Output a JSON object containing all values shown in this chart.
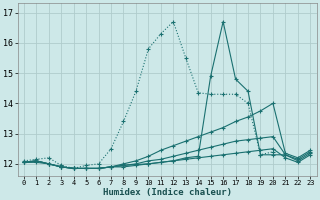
{
  "xlabel": "Humidex (Indice chaleur)",
  "bg_color": "#cde8e8",
  "grid_color": "#b0cccc",
  "line_color": "#1a7070",
  "xlim": [
    -0.5,
    23.5
  ],
  "ylim": [
    11.6,
    17.3
  ],
  "xticks": [
    0,
    1,
    2,
    3,
    4,
    5,
    6,
    7,
    8,
    9,
    10,
    11,
    12,
    13,
    14,
    15,
    16,
    17,
    18,
    19,
    20,
    21,
    22,
    23
  ],
  "yticks": [
    12,
    13,
    14,
    15,
    16,
    17
  ],
  "lines": [
    {
      "x": [
        0,
        1,
        2,
        3,
        4,
        5,
        6,
        7,
        8,
        9,
        10,
        11,
        12,
        13,
        14,
        15,
        16,
        17,
        18,
        19,
        20
      ],
      "y": [
        12.1,
        12.15,
        12.2,
        11.95,
        11.85,
        11.95,
        12.0,
        12.5,
        13.4,
        14.4,
        15.8,
        16.3,
        16.7,
        15.5,
        14.35,
        14.3,
        14.3,
        14.3,
        14.0,
        12.3,
        12.4
      ],
      "linestyle": "dotted"
    },
    {
      "x": [
        0,
        1,
        2,
        3,
        4,
        5,
        6,
        7,
        8,
        9,
        10,
        11,
        12,
        13,
        14,
        15,
        16,
        17,
        18,
        19,
        20,
        21,
        22,
        23
      ],
      "y": [
        12.05,
        12.05,
        12.0,
        11.9,
        11.85,
        11.85,
        11.85,
        11.9,
        11.9,
        11.95,
        12.0,
        12.05,
        12.1,
        12.2,
        12.25,
        14.9,
        16.7,
        14.8,
        14.4,
        12.3,
        12.3,
        12.3,
        12.15,
        12.4
      ],
      "linestyle": "solid"
    },
    {
      "x": [
        0,
        1,
        2,
        3,
        4,
        5,
        6,
        7,
        8,
        9,
        10,
        11,
        12,
        13,
        14,
        15,
        16,
        17,
        18,
        19,
        20,
        21,
        22,
        23
      ],
      "y": [
        12.05,
        12.1,
        12.0,
        11.9,
        11.85,
        11.85,
        11.85,
        11.9,
        12.0,
        12.1,
        12.25,
        12.45,
        12.6,
        12.75,
        12.9,
        13.05,
        13.2,
        13.4,
        13.55,
        13.75,
        14.0,
        12.35,
        12.2,
        12.45
      ],
      "linestyle": "solid"
    },
    {
      "x": [
        0,
        1,
        2,
        3,
        4,
        5,
        6,
        7,
        8,
        9,
        10,
        11,
        12,
        13,
        14,
        15,
        16,
        17,
        18,
        19,
        20,
        21,
        22,
        23
      ],
      "y": [
        12.05,
        12.1,
        12.0,
        11.9,
        11.85,
        11.85,
        11.85,
        11.9,
        11.95,
        12.0,
        12.1,
        12.15,
        12.25,
        12.35,
        12.45,
        12.55,
        12.65,
        12.75,
        12.8,
        12.85,
        12.9,
        12.3,
        12.1,
        12.35
      ],
      "linestyle": "solid"
    },
    {
      "x": [
        0,
        1,
        2,
        3,
        4,
        5,
        6,
        7,
        8,
        9,
        10,
        11,
        12,
        13,
        14,
        15,
        16,
        17,
        18,
        19,
        20,
        21,
        22,
        23
      ],
      "y": [
        12.05,
        12.1,
        12.0,
        11.9,
        11.85,
        11.85,
        11.85,
        11.9,
        11.95,
        11.98,
        12.0,
        12.05,
        12.1,
        12.15,
        12.2,
        12.25,
        12.3,
        12.35,
        12.4,
        12.45,
        12.5,
        12.2,
        12.05,
        12.3
      ],
      "linestyle": "solid"
    }
  ]
}
